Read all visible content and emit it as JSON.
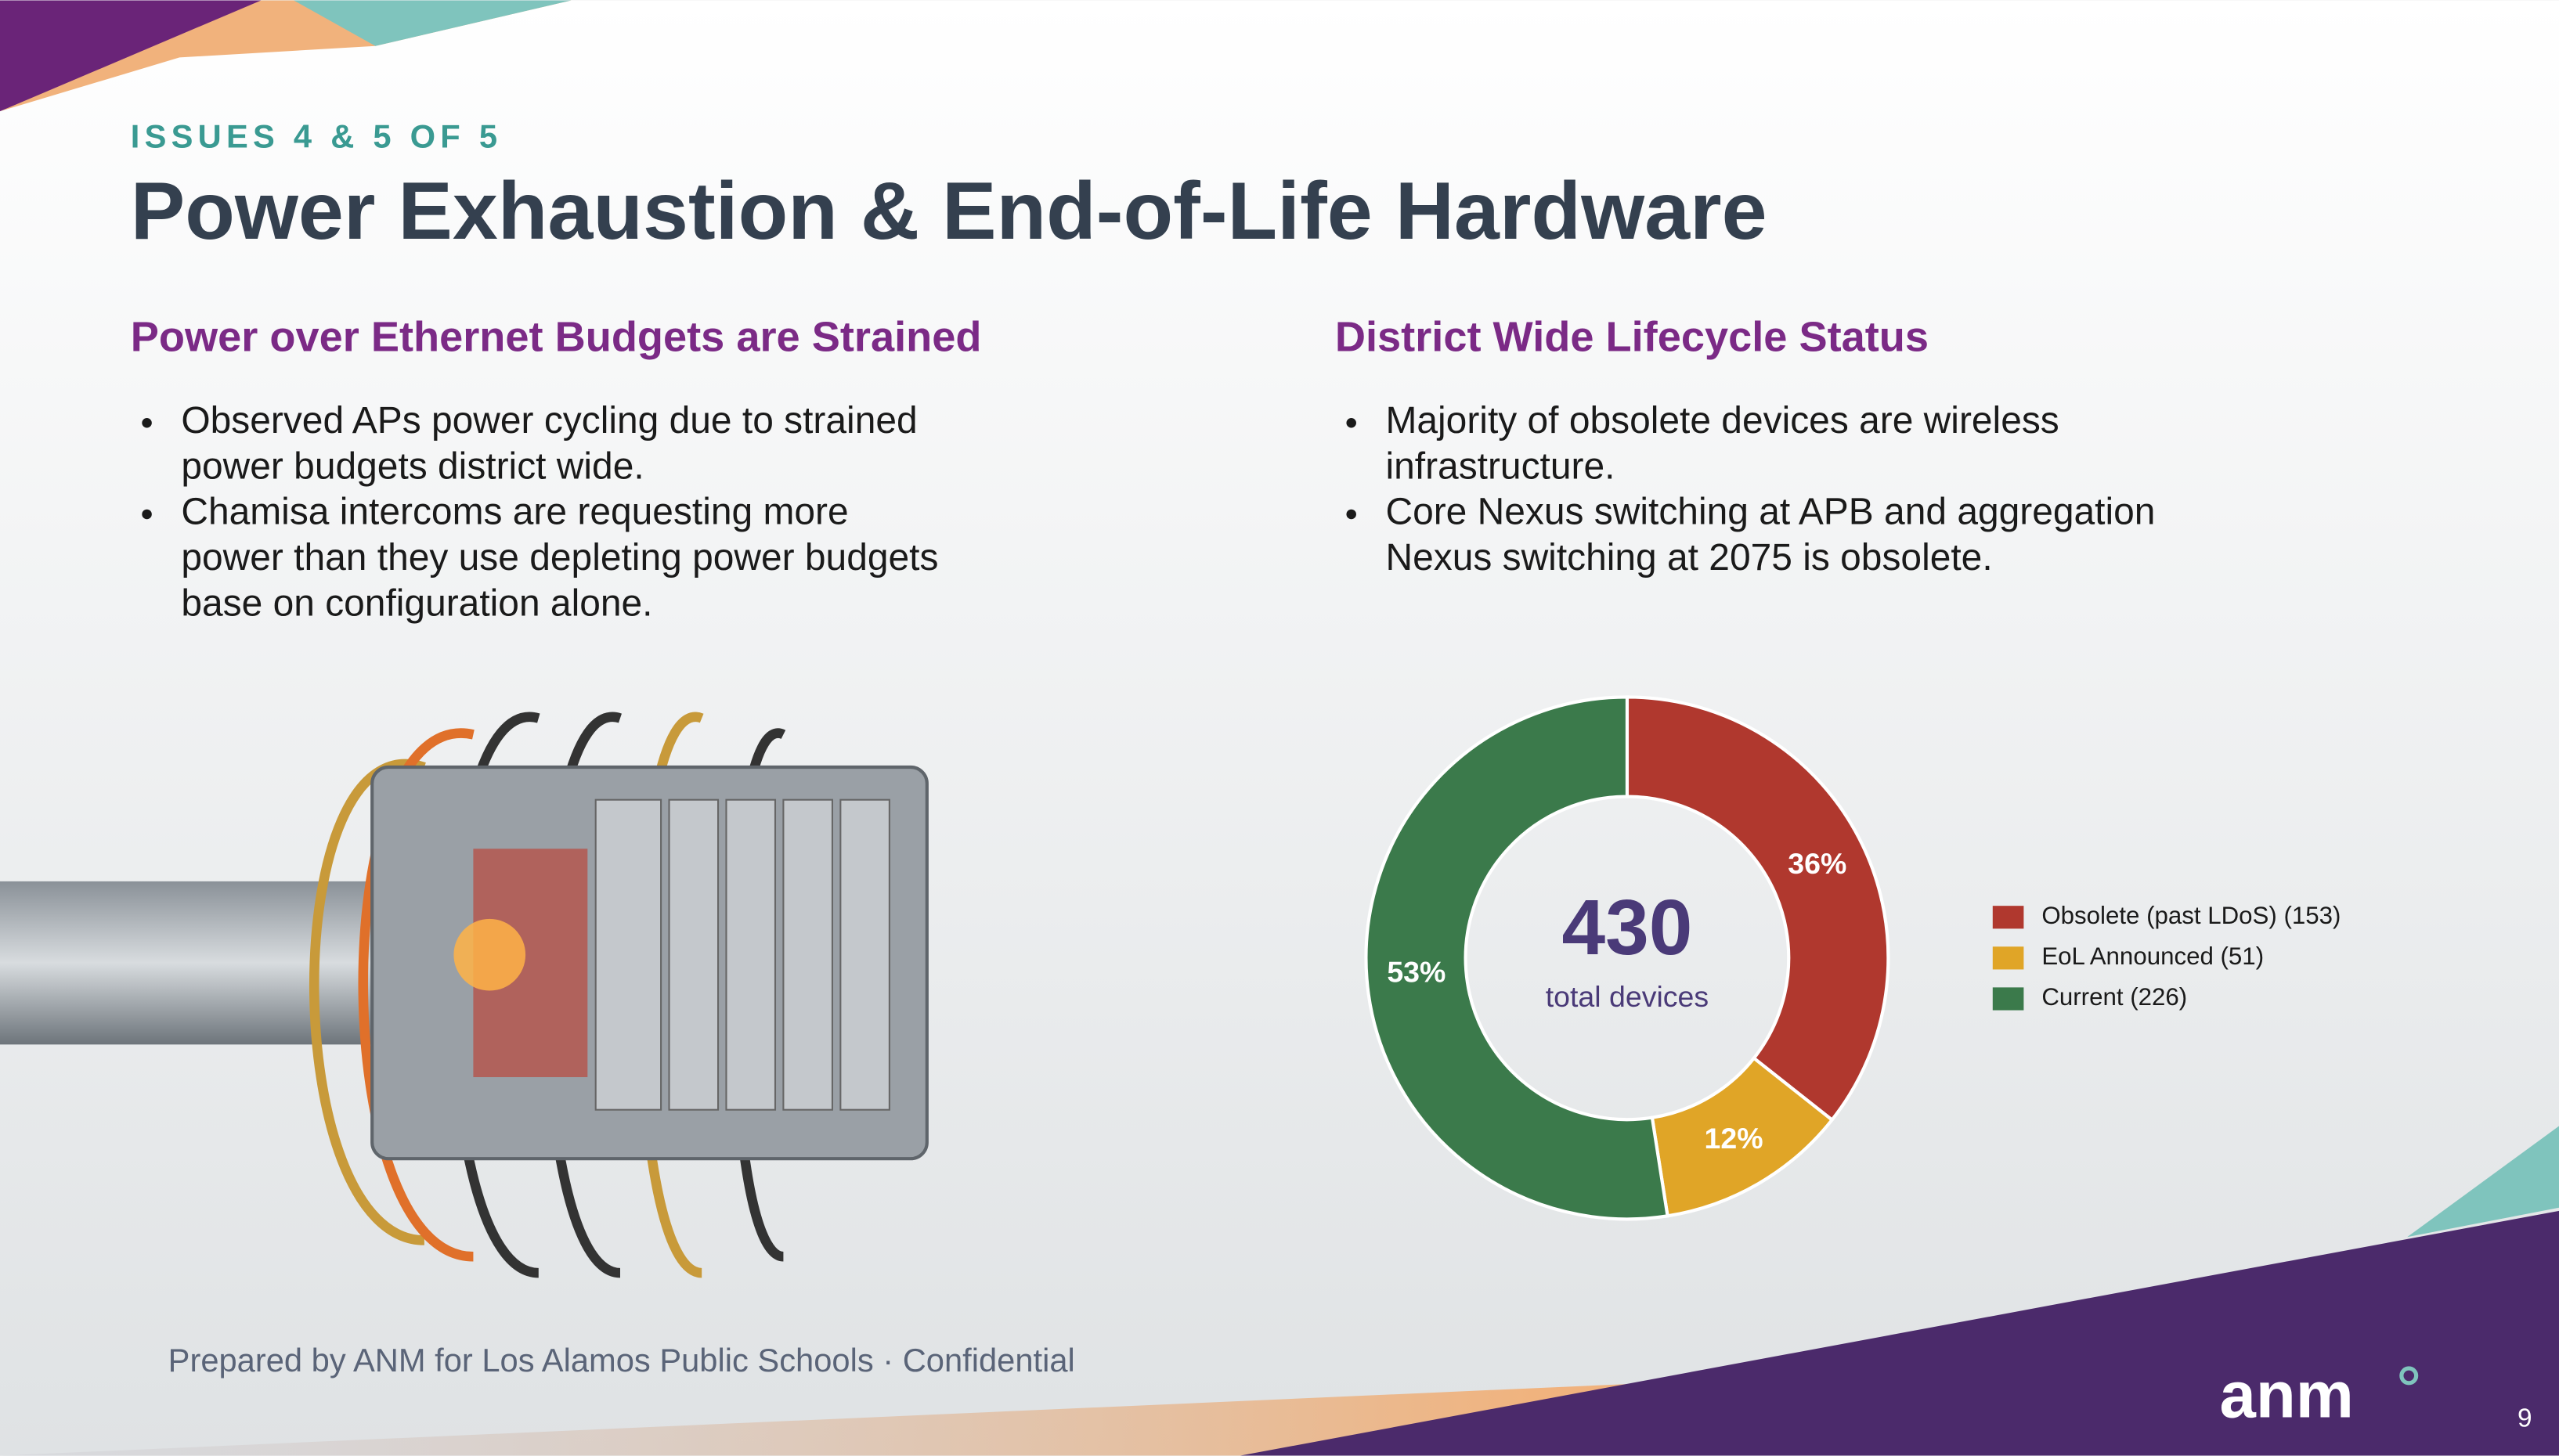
{
  "header": {
    "eyebrow": "ISSUES 4 & 5 OF 5",
    "title": "Power Exhaustion & End-of-Life Hardware"
  },
  "left": {
    "heading": "Power over Ethernet Budgets are Strained",
    "bullets": [
      [
        "Observed APs power cycling due to strained",
        "power budgets district wide."
      ],
      [
        "Chamisa intercoms are requesting more",
        "power than they use depleting power budgets",
        "base on configuration alone."
      ]
    ]
  },
  "right": {
    "heading": "District Wide Lifecycle Status",
    "bullets": [
      [
        "Majority of obsolete devices are wireless",
        "infrastructure."
      ],
      [
        "Core Nexus switching at APB and aggregation",
        "Nexus switching at 2075 is obsolete."
      ]
    ]
  },
  "chart_data": {
    "type": "donut",
    "center_value": 430,
    "center_label": "total devices",
    "categories": [
      "Obsolete (past LDoS)  (153)",
      "EoL Announced  (51)",
      "Current  (226)"
    ],
    "values": [
      36,
      12,
      53
    ],
    "value_labels": [
      "36%",
      "12%",
      "53%"
    ],
    "colors": [
      "#b0382e",
      "#e0a527",
      "#3b7a4b"
    ]
  },
  "footer": {
    "text": "Prepared by ANM for Los Alamos Public Schools · Confidential",
    "logo": "anm",
    "page_number": 9
  }
}
